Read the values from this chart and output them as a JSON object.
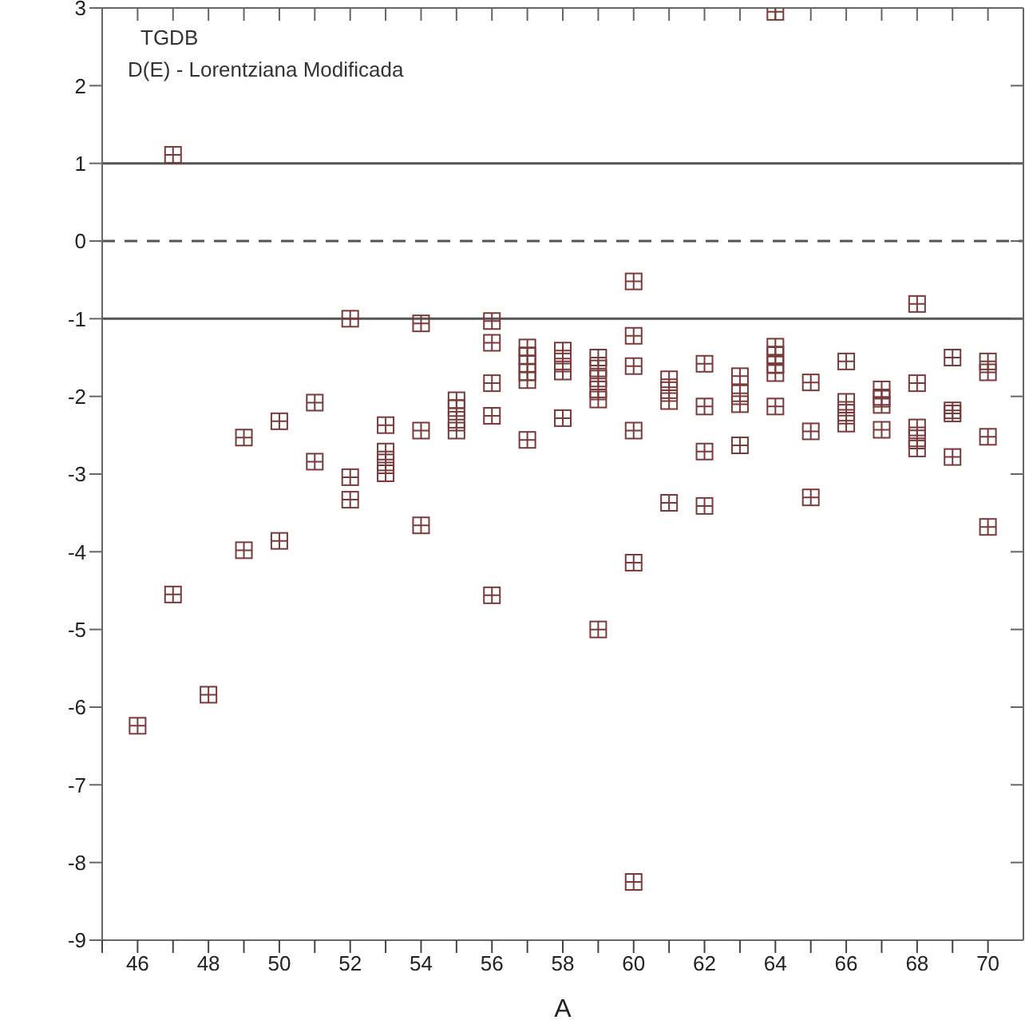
{
  "chart_data": {
    "type": "scatter",
    "xlabel": "A",
    "annotations": [
      "TGDB",
      "D(E) - Lorentziana Modificada"
    ],
    "xlim": [
      45,
      71
    ],
    "xticks": [
      {
        "value": 45,
        "label": null
      },
      46,
      {
        "value": 47,
        "label": null
      },
      48,
      {
        "value": 49,
        "label": null
      },
      50,
      {
        "value": 51,
        "label": null
      },
      52,
      {
        "value": 53,
        "label": null
      },
      54,
      {
        "value": 55,
        "label": null
      },
      56,
      {
        "value": 57,
        "label": null
      },
      58,
      {
        "value": 59,
        "label": null
      },
      60,
      {
        "value": 61,
        "label": null
      },
      62,
      {
        "value": 63,
        "label": null
      },
      64,
      {
        "value": 65,
        "label": null
      },
      66,
      {
        "value": 67,
        "label": null
      },
      68,
      {
        "value": 69,
        "label": null
      },
      70
    ],
    "ylim": [
      -9,
      3
    ],
    "yticks": [
      -9,
      -8,
      -7,
      -6,
      -5,
      -4,
      -3,
      -2,
      -1,
      0,
      1,
      2,
      3
    ],
    "legend": false,
    "marker": "square",
    "ref_lines": [
      {
        "axis": "y",
        "value": 1,
        "line_style": "solid",
        "color": "#555555"
      },
      {
        "axis": "y",
        "value": 0,
        "line_style": "dashed",
        "color": "#555555"
      },
      {
        "axis": "y",
        "value": -1,
        "line_style": "solid",
        "color": "#555555"
      }
    ],
    "series": [
      {
        "color": "#7a3a3a",
        "x": [
          46,
          47,
          47,
          48,
          49,
          49,
          50,
          50,
          51,
          51,
          52,
          52,
          52,
          53,
          53,
          53,
          53,
          54,
          54,
          54,
          55,
          55,
          55,
          55,
          56,
          56,
          56,
          56,
          56,
          57,
          57,
          57,
          57,
          57,
          57,
          58,
          58,
          58,
          58,
          59,
          59,
          59,
          59,
          59,
          59,
          60,
          60,
          60,
          60,
          60,
          60,
          61,
          61,
          61,
          61,
          62,
          62,
          62,
          62,
          63,
          63,
          63,
          63,
          64,
          64,
          64,
          64,
          64,
          64,
          65,
          65,
          65,
          66,
          66,
          66,
          66,
          67,
          67,
          67,
          67,
          68,
          68,
          68,
          68,
          68,
          69,
          69,
          69,
          69,
          70,
          70,
          70,
          70
        ],
        "values": [
          -6.24,
          -4.55,
          1.11,
          -5.84,
          -2.53,
          -3.98,
          -2.32,
          -3.86,
          -2.08,
          -2.84,
          -1.0,
          -3.04,
          -3.33,
          -2.37,
          -2.71,
          -2.85,
          -2.99,
          -1.06,
          -2.44,
          -3.66,
          -2.05,
          -2.15,
          -2.3,
          -2.44,
          -1.03,
          -1.31,
          -1.83,
          -2.25,
          -4.56,
          -1.37,
          -1.48,
          -1.58,
          -1.69,
          -1.79,
          -2.56,
          -1.41,
          -1.55,
          -1.68,
          -2.28,
          -1.5,
          -1.64,
          -1.77,
          -1.91,
          -2.04,
          -5.0,
          -0.52,
          -1.22,
          -1.61,
          -2.44,
          -4.14,
          -8.25,
          -1.78,
          -1.92,
          -2.06,
          -3.37,
          -1.58,
          -2.13,
          -2.71,
          -3.41,
          -1.74,
          -1.96,
          -2.1,
          -2.63,
          -1.36,
          -1.47,
          -1.59,
          -1.7,
          -2.13,
          2.95,
          -1.82,
          -2.45,
          -3.3,
          -1.55,
          -2.07,
          -2.21,
          -2.35,
          -1.91,
          -2.03,
          -2.11,
          -2.43,
          -0.81,
          -1.83,
          -2.4,
          -2.54,
          -2.67,
          -1.5,
          -2.18,
          -2.22,
          -2.78,
          -1.55,
          -1.69,
          -2.52,
          -3.68
        ]
      }
    ]
  }
}
